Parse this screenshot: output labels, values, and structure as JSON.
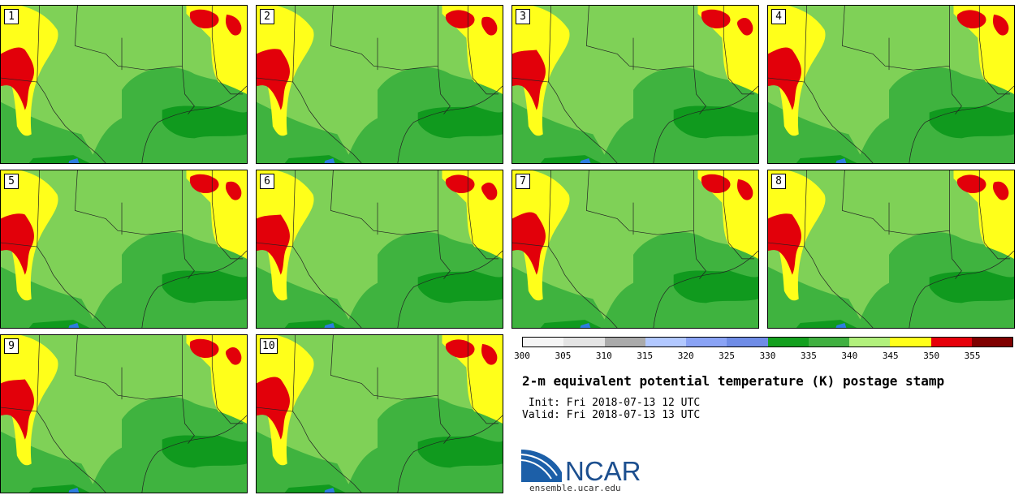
{
  "figure": {
    "title": "2-m equivalent potential temperature (K) postage stamp",
    "init_label": " Init:",
    "init_value": "Fri 2018-07-13 12 UTC",
    "valid_label": "Valid:",
    "valid_value": "Fri 2018-07-13 13 UTC",
    "logo_text": "NCAR",
    "logo_url": "ensemble.ucar.edu"
  },
  "members": [
    "1",
    "2",
    "3",
    "4",
    "5",
    "6",
    "7",
    "8",
    "9",
    "10"
  ],
  "colorbar": {
    "units": "K",
    "ticks": [
      "300",
      "305",
      "310",
      "315",
      "320",
      "325",
      "330",
      "335",
      "340",
      "345",
      "350",
      "355"
    ],
    "colors": [
      "#f5f5f5",
      "#e4e4e4",
      "#aaaaaa",
      "#b2c8ff",
      "#8aa3f5",
      "#6f8ce6",
      "#13a01e",
      "#40b040",
      "#b2f07c",
      "#ffff1a",
      "#e6000a",
      "#7f0000"
    ]
  },
  "map": {
    "fill_colors": {
      "background": "#7fd157",
      "moist_low": "#3fb33f",
      "moist_high": "#109a1e",
      "warm": "#ffff1a",
      "hot": "#e2000a",
      "water": "#2d7de0"
    }
  }
}
